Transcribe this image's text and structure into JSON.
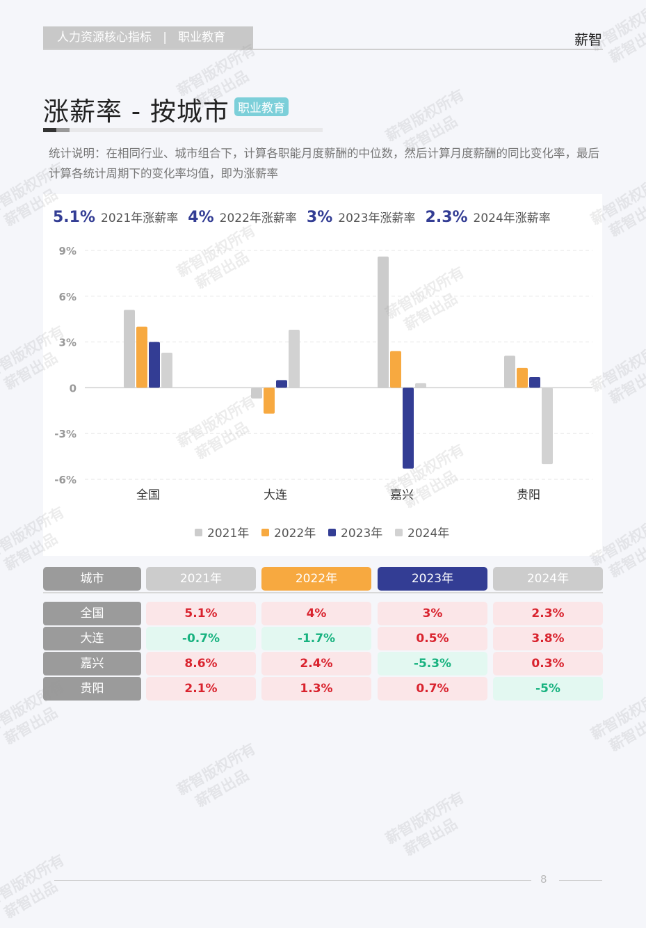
{
  "header": {
    "section": "人力资源核心指标   |   职业教育",
    "brand": "薪智"
  },
  "title": "涨薪率 - 按城市",
  "badge": "职业教育",
  "description": "统计说明：在相同行业、城市组合下，计算各职能月度薪酬的中位数，然后计算月度薪酬的同比变化率，最后计算各统计周期下的变化率均值，即为涨薪率",
  "kpis": [
    {
      "value": "5.1%",
      "label": "2021年涨薪率"
    },
    {
      "value": "4%",
      "label": "2022年涨薪率"
    },
    {
      "value": "3%",
      "label": "2023年涨薪率"
    },
    {
      "value": "2.3%",
      "label": "2024年涨薪率"
    }
  ],
  "chart_data": {
    "type": "bar",
    "categories": [
      "全国",
      "大连",
      "嘉兴",
      "贵阳"
    ],
    "series": [
      {
        "name": "2021年",
        "color": "#cccccc",
        "values": [
          5.1,
          -0.7,
          8.6,
          2.1
        ]
      },
      {
        "name": "2022年",
        "color": "#f7a940",
        "values": [
          4,
          -1.7,
          2.4,
          1.3
        ]
      },
      {
        "name": "2023年",
        "color": "#333d94",
        "values": [
          3,
          0.5,
          -5.3,
          0.7
        ]
      },
      {
        "name": "2024年",
        "color": "#d2d2d2",
        "values": [
          2.3,
          3.8,
          0.3,
          -5
        ]
      }
    ],
    "yticks": [
      "9%",
      "6%",
      "3%",
      "0",
      "-3%",
      "-6%"
    ],
    "ylim": [
      -6,
      9
    ],
    "grid": true,
    "legend": "bottom",
    "unit": "%"
  },
  "table": {
    "headers": [
      "城市",
      "2021年",
      "2022年",
      "2023年",
      "2024年"
    ],
    "header_colors": [
      "#9b9b9b",
      "#cccccc",
      "#f7a940",
      "#333d94",
      "#cccccc"
    ],
    "rows": [
      [
        "全国",
        "5.1%",
        "4%",
        "3%",
        "2.3%"
      ],
      [
        "大连",
        "-0.7%",
        "-1.7%",
        "0.5%",
        "3.8%"
      ],
      [
        "嘉兴",
        "8.6%",
        "2.4%",
        "-5.3%",
        "0.3%"
      ],
      [
        "贵阳",
        "2.1%",
        "1.3%",
        "0.7%",
        "-5%"
      ]
    ],
    "positive": {
      "bg": "#fbe6e8",
      "text": "#d9232e"
    },
    "negative": {
      "bg": "#e3f8f1",
      "text": "#17b27f"
    }
  },
  "page_number": "8",
  "watermark": [
    "薪智版权所有",
    "薪智出品"
  ]
}
